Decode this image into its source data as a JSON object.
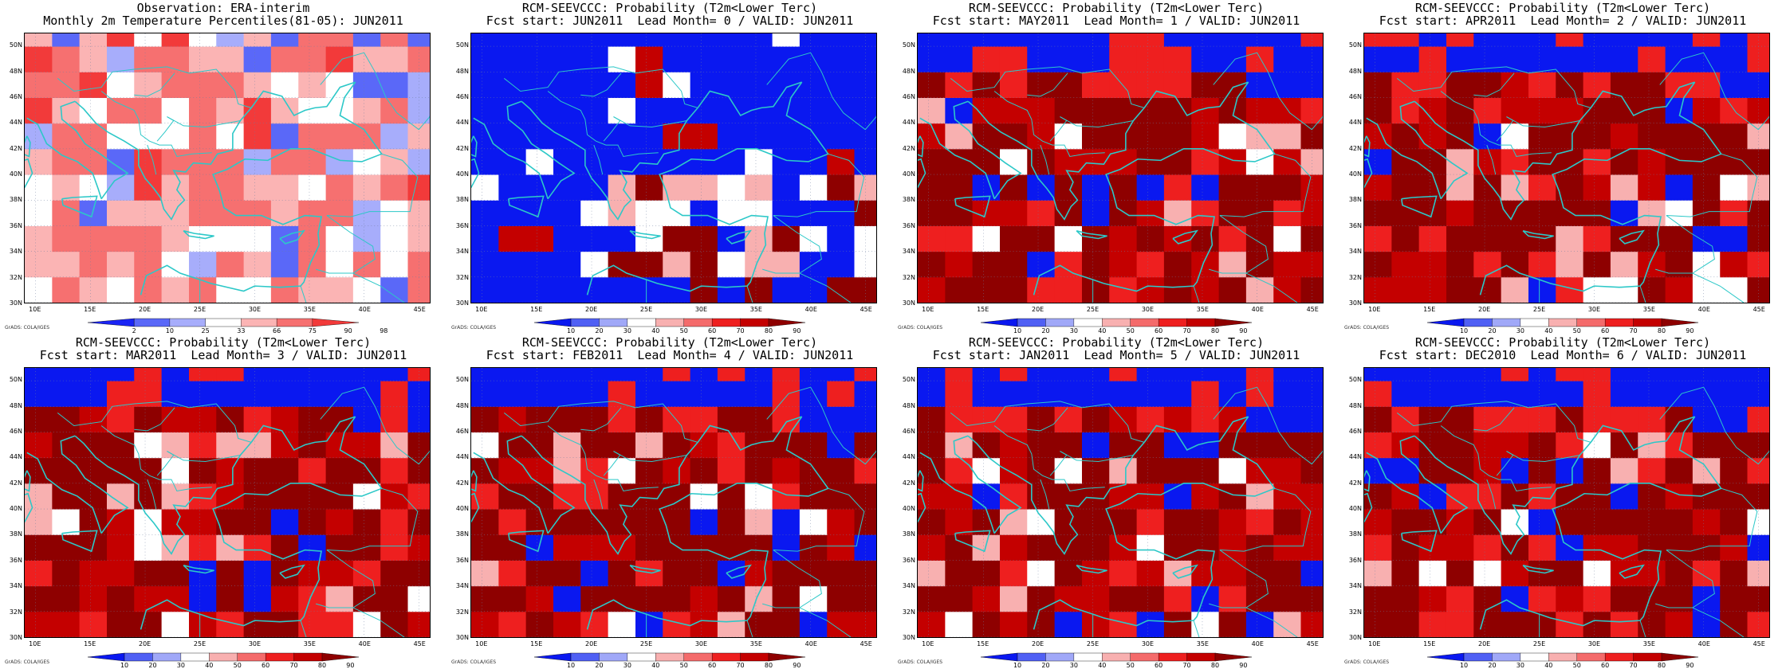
{
  "grads_label": "GrADS: COLA/IGES",
  "map_extent": {
    "lon": [
      9,
      46
    ],
    "lat": [
      30,
      51
    ]
  },
  "lat_ticks": [
    "50N",
    "48N",
    "46N",
    "44N",
    "42N",
    "40N",
    "38N",
    "36N",
    "34N",
    "32N",
    "30N"
  ],
  "lon_ticks": [
    "10E",
    "15E",
    "20E",
    "25E",
    "30E",
    "35E",
    "40E",
    "45E"
  ],
  "colors": {
    "ocean_blue": "#0018ff",
    "coastline": "#2cc8c8",
    "percentile_scale": [
      "#1a24f5",
      "#5a68f8",
      "#a7adfb",
      "#ffffff",
      "#fbb4b4",
      "#f67070",
      "#f23a3a"
    ],
    "probability_scale": [
      "#0a18f0",
      "#5060f4",
      "#a0a8f8",
      "#ffffff",
      "#f8b0b0",
      "#f46b6b",
      "#ee1f1f",
      "#c40000",
      "#8e0000"
    ]
  },
  "observation_colorbar_labels": [
    "2",
    "10",
    "25",
    "33",
    "66",
    "75",
    "90",
    "98"
  ],
  "probability_colorbar_labels": [
    "10",
    "20",
    "30",
    "40",
    "50",
    "60",
    "70",
    "80",
    "90"
  ],
  "panels": [
    {
      "title_line1": "Observation: ERA-interim",
      "title_line2": "Monthly 2m Temperature Percentiles(81-05): JUN2011",
      "kind": "observation"
    },
    {
      "title_line1": "RCM-SEEVCCC: Probability (T2m<Lower Terc)",
      "title_line2": "Fcst start: JUN2011  Lead Month= 0 / VALID: JUN2011",
      "kind": "probability"
    },
    {
      "title_line1": "RCM-SEEVCCC: Probability (T2m<Lower Terc)",
      "title_line2": "Fcst start: MAY2011  Lead Month= 1 / VALID: JUN2011",
      "kind": "probability"
    },
    {
      "title_line1": "RCM-SEEVCCC: Probability (T2m<Lower Terc)",
      "title_line2": "Fcst start: APR2011  Lead Month= 2 / VALID: JUN2011",
      "kind": "probability"
    },
    {
      "title_line1": "RCM-SEEVCCC: Probability (T2m<Lower Terc)",
      "title_line2": "Fcst start: MAR2011  Lead Month= 3 / VALID: JUN2011",
      "kind": "probability"
    },
    {
      "title_line1": "RCM-SEEVCCC: Probability (T2m<Lower Terc)",
      "title_line2": "Fcst start: FEB2011  Lead Month= 4 / VALID: JUN2011",
      "kind": "probability"
    },
    {
      "title_line1": "RCM-SEEVCCC: Probability (T2m<Lower Terc)",
      "title_line2": "Fcst start: JAN2011  Lead Month= 5 / VALID: JUN2011",
      "kind": "probability"
    },
    {
      "title_line1": "RCM-SEEVCCC: Probability (T2m<Lower Terc)",
      "title_line2": "Fcst start: DEC2010  Lead Month= 6 / VALID: JUN2011",
      "kind": "probability"
    }
  ]
}
